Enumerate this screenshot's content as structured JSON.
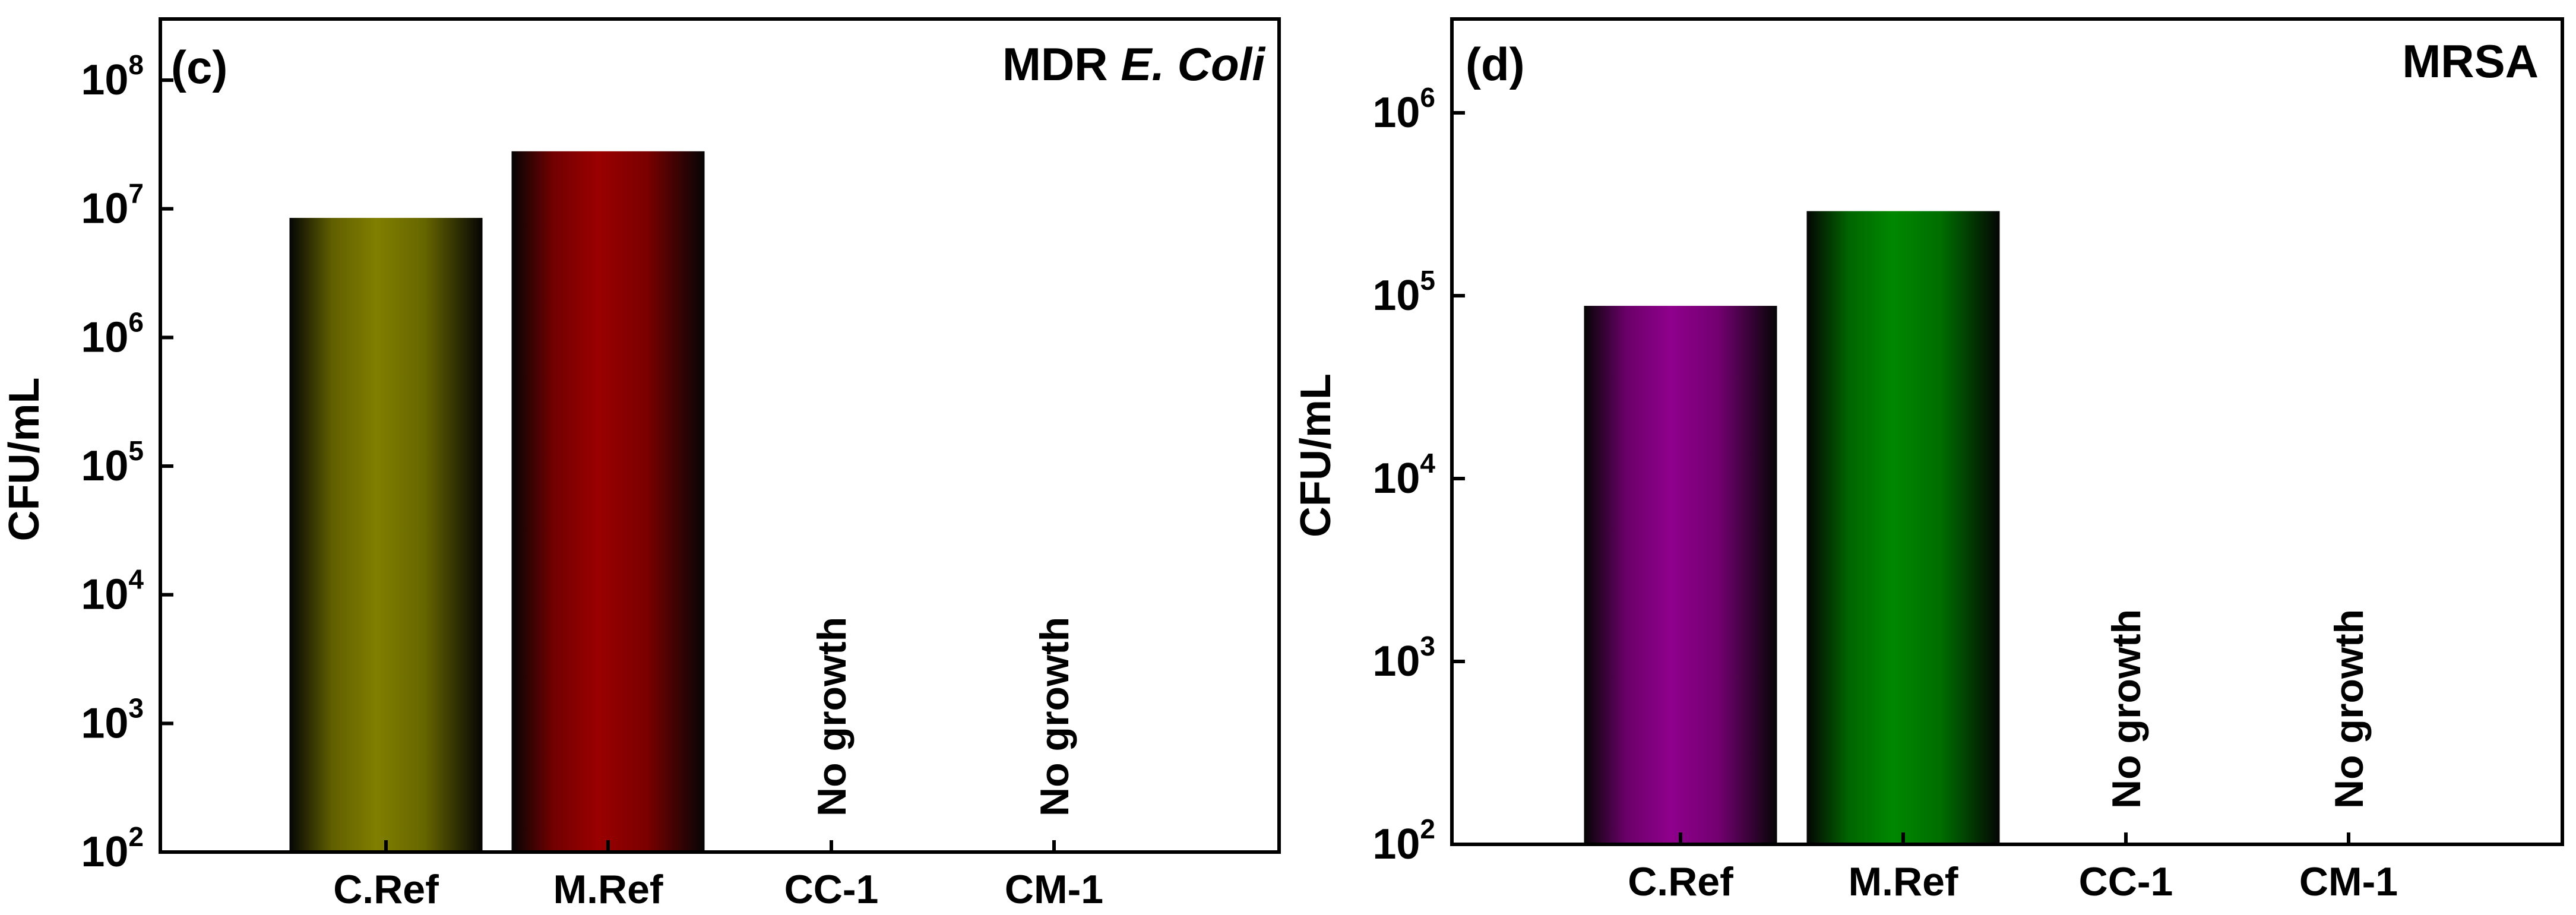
{
  "chart_data": [
    {
      "type": "bar",
      "panel_label": "(c)",
      "title_prefix": "MDR ",
      "title_italic": "E. Coli",
      "ylabel": "CFU/mL",
      "yscale": "log",
      "ylim": [
        100,
        500000000
      ],
      "ytick_exponents": [
        2,
        3,
        4,
        5,
        6,
        7,
        8
      ],
      "ytick_base": "10",
      "categories": [
        "C.Ref",
        "M.Ref",
        "CC-1",
        "CM-1"
      ],
      "values": [
        8500000,
        28000000,
        null,
        null
      ],
      "annotations": [
        "",
        "",
        "No growth",
        "No growth"
      ],
      "bar_colors": [
        "#807f00",
        "#9a0000",
        "",
        ""
      ]
    },
    {
      "type": "bar",
      "panel_label": "(d)",
      "title_prefix": "MRSA",
      "title_italic": "",
      "ylabel": "CFU/mL",
      "yscale": "log",
      "ylim": [
        100,
        3000000
      ],
      "ytick_exponents": [
        2,
        3,
        4,
        5,
        6
      ],
      "ytick_base": "10",
      "categories": [
        "C.Ref",
        "M.Ref",
        "CC-1",
        "CM-1"
      ],
      "values": [
        88000,
        290000,
        null,
        null
      ],
      "annotations": [
        "",
        "",
        "No growth",
        "No growth"
      ],
      "bar_colors": [
        "#8f008c",
        "#008800",
        "",
        ""
      ]
    }
  ]
}
